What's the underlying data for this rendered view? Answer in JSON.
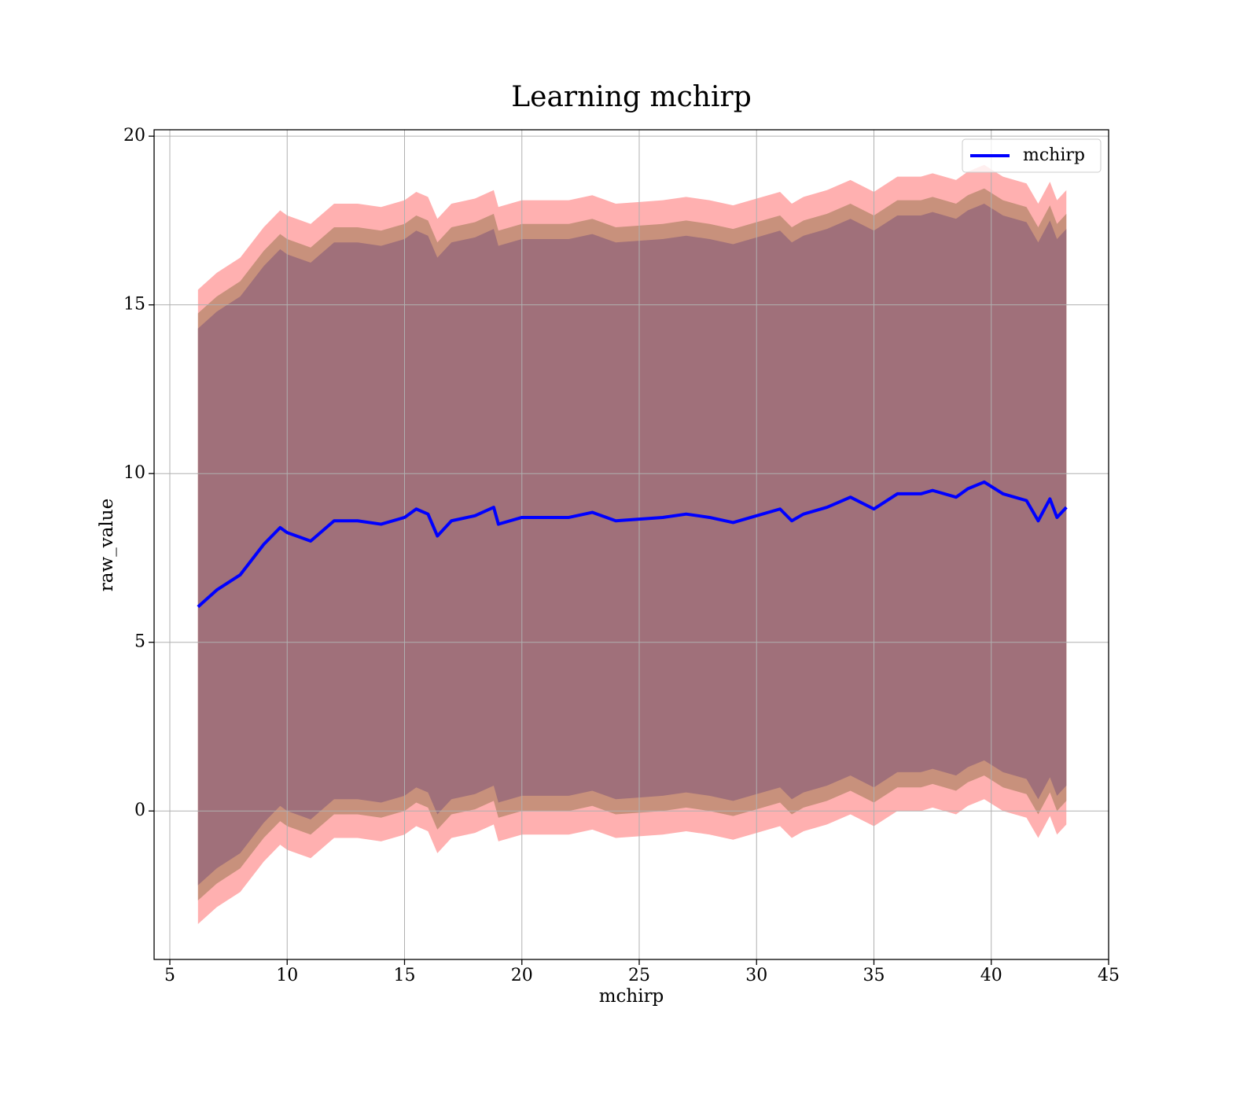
{
  "chart_data": {
    "type": "line",
    "title": "Learning mchirp",
    "xlabel": "mchirp",
    "ylabel": "raw_value",
    "x": [
      6.2,
      7,
      8,
      9,
      9.7,
      10,
      11,
      12,
      13,
      14,
      15,
      15.5,
      16,
      16.4,
      17,
      18,
      18.8,
      19,
      20,
      21,
      22,
      23,
      24,
      25,
      26,
      27,
      28,
      29,
      30,
      31,
      31.5,
      32,
      33,
      34,
      35,
      36,
      37,
      37.5,
      38.5,
      39,
      39.7,
      40.5,
      41.5,
      42,
      42.5,
      42.8,
      43.2
    ],
    "series": [
      {
        "name": "mchirp",
        "color": "#0000ff",
        "values": [
          6.05,
          6.55,
          7.0,
          7.9,
          8.4,
          8.25,
          8.0,
          8.6,
          8.6,
          8.5,
          8.7,
          8.95,
          8.8,
          8.15,
          8.6,
          8.75,
          9.0,
          8.5,
          8.7,
          8.7,
          8.7,
          8.85,
          8.6,
          8.65,
          8.7,
          8.8,
          8.7,
          8.55,
          8.75,
          8.95,
          8.6,
          8.8,
          9.0,
          9.3,
          8.95,
          9.4,
          9.4,
          9.5,
          9.3,
          9.55,
          9.75,
          9.4,
          9.2,
          8.6,
          9.25,
          8.7,
          9.0
        ]
      }
    ],
    "bands": [
      {
        "color": "#ffb0b0",
        "upper": [
          15.45,
          15.95,
          16.4,
          17.3,
          17.8,
          17.65,
          17.4,
          18.0,
          18.0,
          17.9,
          18.1,
          18.35,
          18.2,
          17.55,
          18.0,
          18.15,
          18.4,
          17.9,
          18.1,
          18.1,
          18.1,
          18.25,
          18.0,
          18.05,
          18.1,
          18.2,
          18.1,
          17.95,
          18.15,
          18.35,
          18.0,
          18.2,
          18.4,
          18.7,
          18.35,
          18.8,
          18.8,
          18.9,
          18.7,
          18.95,
          19.15,
          18.8,
          18.6,
          18.0,
          18.65,
          18.1,
          18.4
        ],
        "lower": [
          -3.35,
          -2.85,
          -2.4,
          -1.5,
          -1.0,
          -1.15,
          -1.4,
          -0.8,
          -0.8,
          -0.9,
          -0.7,
          -0.45,
          -0.6,
          -1.25,
          -0.8,
          -0.65,
          -0.4,
          -0.9,
          -0.7,
          -0.7,
          -0.7,
          -0.55,
          -0.8,
          -0.75,
          -0.7,
          -0.6,
          -0.7,
          -0.85,
          -0.65,
          -0.45,
          -0.8,
          -0.6,
          -0.4,
          -0.1,
          -0.45,
          0.0,
          0.0,
          0.1,
          -0.1,
          0.15,
          0.35,
          0.0,
          -0.2,
          -0.8,
          -0.15,
          -0.7,
          -0.4
        ]
      },
      {
        "color": "#c8917c",
        "upper": [
          14.75,
          15.25,
          15.7,
          16.6,
          17.1,
          16.95,
          16.7,
          17.3,
          17.3,
          17.2,
          17.4,
          17.65,
          17.5,
          16.85,
          17.3,
          17.45,
          17.7,
          17.2,
          17.4,
          17.4,
          17.4,
          17.55,
          17.3,
          17.35,
          17.4,
          17.5,
          17.4,
          17.25,
          17.45,
          17.65,
          17.3,
          17.5,
          17.7,
          18.0,
          17.65,
          18.1,
          18.1,
          18.2,
          18.0,
          18.25,
          18.45,
          18.1,
          17.9,
          17.3,
          17.95,
          17.4,
          17.7
        ],
        "lower": [
          -2.65,
          -2.15,
          -1.7,
          -0.8,
          -0.3,
          -0.45,
          -0.7,
          -0.1,
          -0.1,
          -0.2,
          0.0,
          0.25,
          0.1,
          -0.55,
          -0.1,
          0.05,
          0.3,
          -0.2,
          0.0,
          0.0,
          0.0,
          0.15,
          -0.1,
          -0.05,
          0.0,
          0.1,
          0.0,
          -0.15,
          0.05,
          0.25,
          -0.1,
          0.1,
          0.3,
          0.6,
          0.25,
          0.7,
          0.7,
          0.8,
          0.6,
          0.85,
          1.05,
          0.7,
          0.5,
          -0.1,
          0.55,
          0.0,
          0.3
        ]
      },
      {
        "color": "#a0707a",
        "upper": [
          14.3,
          14.8,
          15.25,
          16.15,
          16.65,
          16.5,
          16.25,
          16.85,
          16.85,
          16.75,
          16.95,
          17.2,
          17.05,
          16.4,
          16.85,
          17.0,
          17.25,
          16.75,
          16.95,
          16.95,
          16.95,
          17.1,
          16.85,
          16.9,
          16.95,
          17.05,
          16.95,
          16.8,
          17.0,
          17.2,
          16.85,
          17.05,
          17.25,
          17.55,
          17.2,
          17.65,
          17.65,
          17.75,
          17.55,
          17.8,
          18.0,
          17.65,
          17.45,
          16.85,
          17.5,
          16.95,
          17.25
        ],
        "lower": [
          -2.2,
          -1.7,
          -1.25,
          -0.35,
          0.15,
          0.0,
          -0.25,
          0.35,
          0.35,
          0.25,
          0.45,
          0.7,
          0.55,
          -0.1,
          0.35,
          0.5,
          0.75,
          0.25,
          0.45,
          0.45,
          0.45,
          0.6,
          0.35,
          0.4,
          0.45,
          0.55,
          0.45,
          0.3,
          0.5,
          0.7,
          0.35,
          0.55,
          0.75,
          1.05,
          0.7,
          1.15,
          1.15,
          1.25,
          1.05,
          1.3,
          1.5,
          1.15,
          0.95,
          0.35,
          1.0,
          0.45,
          0.75
        ]
      }
    ],
    "xlim": [
      4.33,
      45
    ],
    "ylim": [
      -4.4,
      20.19
    ],
    "xticks": [
      5,
      10,
      15,
      20,
      25,
      30,
      35,
      40,
      45
    ],
    "yticks": [
      0,
      5,
      10,
      15,
      20
    ],
    "grid": true,
    "legend": "upper right"
  }
}
